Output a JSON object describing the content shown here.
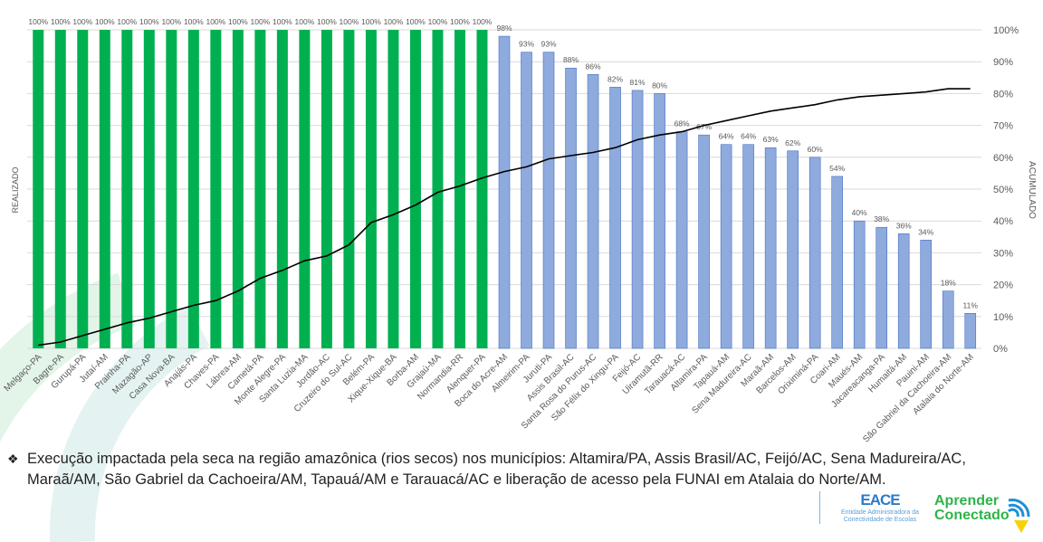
{
  "chart_data": {
    "type": "bar",
    "title": "",
    "ylabel_left": "REALIZADO",
    "ylabel_right": "ACUMULADO",
    "right_ticks": [
      "0%",
      "10%",
      "20%",
      "30%",
      "40%",
      "50%",
      "60%",
      "70%",
      "80%",
      "90%",
      "100%"
    ],
    "ylim": [
      0,
      100
    ],
    "grid": true,
    "categories": [
      "Melgaço-PA",
      "Bagre-PA",
      "Gurupá-PA",
      "Jutaí-AM",
      "Prainha-PA",
      "Mazagão-AP",
      "Casa Nova-BA",
      "Anajás-PA",
      "Chaves-PA",
      "Lábrea-AM",
      "Cametá-PA",
      "Monte Alegre-PA",
      "Santa Luzia-MA",
      "Jordão-AC",
      "Cruzeiro do Sul-AC",
      "Belém-PA",
      "Xique-Xique-BA",
      "Borba-AM",
      "Grajaú-MA",
      "Normandia-RR",
      "Alenquer-PA",
      "Boca do Acre-AM",
      "Almeirim-PA",
      "Juruti-PA",
      "Assis Brasil-AC",
      "Santa Rosa do Purus-AC",
      "São Félix do Xingu-PA",
      "Feijó-AC",
      "Uiramutã-RR",
      "Tarauacá-AC",
      "Altamira-PA",
      "Tapauá-AM",
      "Sena Madureira-AC",
      "Maraã-AM",
      "Barcelos-AM",
      "Oriximiná-PA",
      "Coari-AM",
      "Maués-AM",
      "Jacareacanga-PA",
      "Humaitá-AM",
      "Pauini-AM",
      "São Gabriel da Cachoeira-AM",
      "Atalaia do Norte-AM"
    ],
    "series": [
      {
        "type": "bar",
        "values": [
          100,
          100,
          100,
          100,
          100,
          100,
          100,
          100,
          100,
          100,
          100,
          100,
          100,
          100,
          100,
          100,
          100,
          100,
          100,
          100,
          100,
          98,
          93,
          93,
          88,
          86,
          82,
          81,
          80,
          68,
          67,
          64,
          64,
          63,
          62,
          60,
          54,
          40,
          38,
          36,
          34,
          18,
          11
        ]
      },
      {
        "type": "line",
        "values": [
          1,
          2,
          4,
          6,
          8,
          9.5,
          11.5,
          13.5,
          15,
          18,
          22,
          24.5,
          27.5,
          29,
          32.5,
          39.5,
          42,
          45,
          49,
          51,
          53.5,
          55.5,
          57,
          59.5,
          60.5,
          61.5,
          63,
          65.5,
          67,
          68,
          70,
          71.5,
          73,
          74.5,
          75.5,
          76.5,
          78,
          79,
          79.5,
          80,
          80.5,
          81.5,
          81.5
        ]
      }
    ],
    "colors": {
      "complete": "#00b050",
      "partial": "#8faadc",
      "partial_border": "#4472c4",
      "line": "#000000",
      "grid": "#d9d9d9"
    }
  },
  "note": {
    "bullet": "❖",
    "text": "Execução impactada pela seca na região amazônica (rios secos) nos municípios: Altamira/PA, Assis Brasil/AC, Feijó/AC, Sena Madureira/AC, Maraã/AM,  São Gabriel da Cachoeira/AM, Tapauá/AM e Tarauacá/AC e liberação de acesso pela FUNAI em Atalaia do Norte/AM."
  },
  "logos": {
    "eace": "EACE",
    "eace_sub": "Entidade Administradora da Conectividade de Escolas",
    "aprender_1": "Aprender",
    "aprender_2": "Conectado"
  }
}
